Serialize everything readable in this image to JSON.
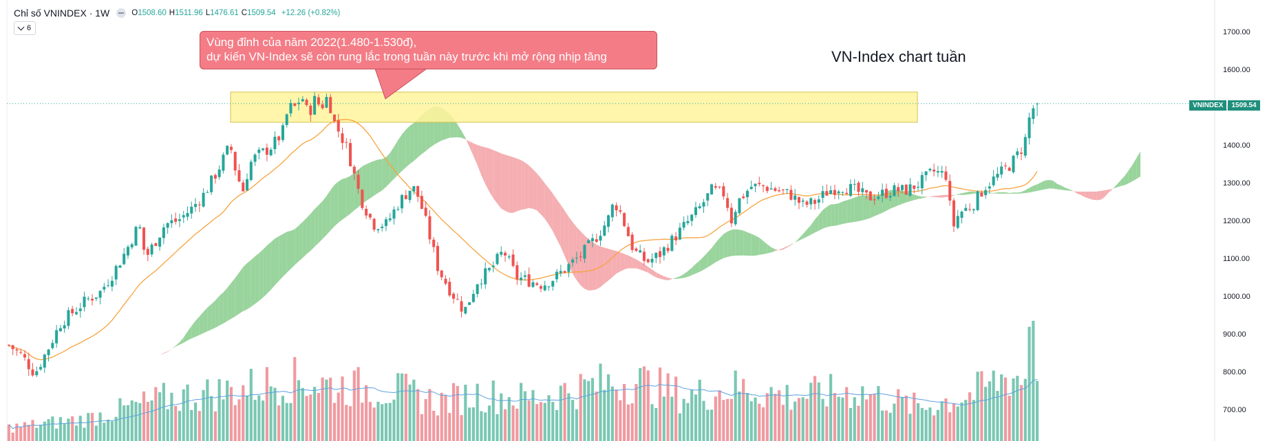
{
  "legend": {
    "title": "Chỉ số VNINDEX · 1W",
    "open_label": "O",
    "open": "1508.60",
    "high_label": "H",
    "high": "1511.96",
    "low_label": "L",
    "low": "1476.61",
    "close_label": "C",
    "close": "1509.54",
    "change": "+12.26 (+0.82%)"
  },
  "indicator_toggle": {
    "count": "6"
  },
  "annotation": {
    "line1": "Vùng đỉnh của năm 2022(1.480-1.530đ),",
    "line2": "dự kiến VN-Index sẽ còn rung lắc trong tuần này trước khi mở rộng nhịp tăng"
  },
  "chart_label": "VN-Index chart tuần",
  "price_badge": {
    "symbol": "VNINDEX",
    "value": "1509.54"
  },
  "colors": {
    "up": "#26a69a",
    "down": "#ef5350",
    "vol_up": "#7ac7b3",
    "vol_down": "#f09aa0",
    "cloud_bull": "#8fcf92",
    "cloud_bear": "#f4a5a9",
    "zone": "#fff59d",
    "ma_line": "#f7a23c",
    "vol_ma": "#5aa0e0"
  },
  "chart_data": {
    "type": "candlestick",
    "timeframe": "1W",
    "yaxis_ticks": [
      "1700.00",
      "1600.00",
      "1500.00",
      "1400.00",
      "1300.00",
      "1200.00",
      "1100.00",
      "1000.00",
      "900.00",
      "800.00",
      "700.00"
    ],
    "ylim": [
      680,
      1740
    ],
    "resistance_zone": [
      1460,
      1540
    ],
    "current_price": 1509.54,
    "close_path": [
      [
        0,
        870
      ],
      [
        10,
        842
      ],
      [
        20,
        795
      ],
      [
        30,
        860
      ],
      [
        40,
        930
      ],
      [
        50,
        960
      ],
      [
        60,
        990
      ],
      [
        70,
        1010
      ],
      [
        80,
        1060
      ],
      [
        90,
        1120
      ],
      [
        100,
        1190
      ],
      [
        105,
        1100
      ],
      [
        110,
        1130
      ],
      [
        120,
        1190
      ],
      [
        130,
        1200
      ],
      [
        140,
        1230
      ],
      [
        150,
        1270
      ],
      [
        160,
        1330
      ],
      [
        170,
        1400
      ],
      [
        175,
        1320
      ],
      [
        180,
        1280
      ],
      [
        185,
        1350
      ],
      [
        190,
        1370
      ],
      [
        200,
        1390
      ],
      [
        210,
        1430
      ],
      [
        215,
        1500
      ],
      [
        220,
        1500
      ],
      [
        225,
        1530
      ],
      [
        230,
        1480
      ],
      [
        235,
        1520
      ],
      [
        240,
        1500
      ],
      [
        245,
        1530
      ],
      [
        250,
        1460
      ],
      [
        260,
        1390
      ],
      [
        270,
        1260
      ],
      [
        280,
        1190
      ],
      [
        290,
        1190
      ],
      [
        300,
        1250
      ],
      [
        310,
        1290
      ],
      [
        315,
        1260
      ],
      [
        320,
        1200
      ],
      [
        330,
        1070
      ],
      [
        340,
        1010
      ],
      [
        350,
        960
      ],
      [
        360,
        1040
      ],
      [
        370,
        1070
      ],
      [
        380,
        1120
      ],
      [
        390,
        1050
      ],
      [
        400,
        1040
      ],
      [
        410,
        1030
      ],
      [
        420,
        1050
      ],
      [
        430,
        1080
      ],
      [
        440,
        1110
      ],
      [
        450,
        1150
      ],
      [
        460,
        1200
      ],
      [
        465,
        1250
      ],
      [
        470,
        1220
      ],
      [
        475,
        1170
      ],
      [
        480,
        1120
      ],
      [
        490,
        1090
      ],
      [
        500,
        1110
      ],
      [
        510,
        1150
      ],
      [
        520,
        1190
      ],
      [
        530,
        1230
      ],
      [
        540,
        1280
      ],
      [
        550,
        1270
      ],
      [
        555,
        1200
      ],
      [
        560,
        1250
      ],
      [
        570,
        1290
      ],
      [
        580,
        1290
      ],
      [
        590,
        1280
      ],
      [
        600,
        1270
      ],
      [
        610,
        1240
      ],
      [
        620,
        1250
      ],
      [
        630,
        1280
      ],
      [
        640,
        1290
      ],
      [
        650,
        1280
      ],
      [
        660,
        1260
      ],
      [
        670,
        1270
      ],
      [
        680,
        1280
      ],
      [
        690,
        1280
      ],
      [
        700,
        1300
      ],
      [
        710,
        1330
      ],
      [
        720,
        1320
      ],
      [
        725,
        1180
      ],
      [
        730,
        1220
      ],
      [
        740,
        1240
      ],
      [
        750,
        1290
      ],
      [
        760,
        1320
      ],
      [
        770,
        1350
      ],
      [
        780,
        1400
      ],
      [
        785,
        1490
      ],
      [
        790,
        1509.54
      ]
    ],
    "volume_level": [
      [
        0,
        0.12
      ],
      [
        60,
        0.2
      ],
      [
        120,
        0.38
      ],
      [
        170,
        0.45
      ],
      [
        215,
        0.55
      ],
      [
        250,
        0.5
      ],
      [
        300,
        0.45
      ],
      [
        330,
        0.35
      ],
      [
        360,
        0.42
      ],
      [
        400,
        0.38
      ],
      [
        450,
        0.5
      ],
      [
        480,
        0.55
      ],
      [
        520,
        0.4
      ],
      [
        560,
        0.48
      ],
      [
        600,
        0.4
      ],
      [
        650,
        0.45
      ],
      [
        700,
        0.3
      ],
      [
        740,
        0.42
      ],
      [
        770,
        0.6
      ],
      [
        790,
        0.5
      ]
    ]
  }
}
